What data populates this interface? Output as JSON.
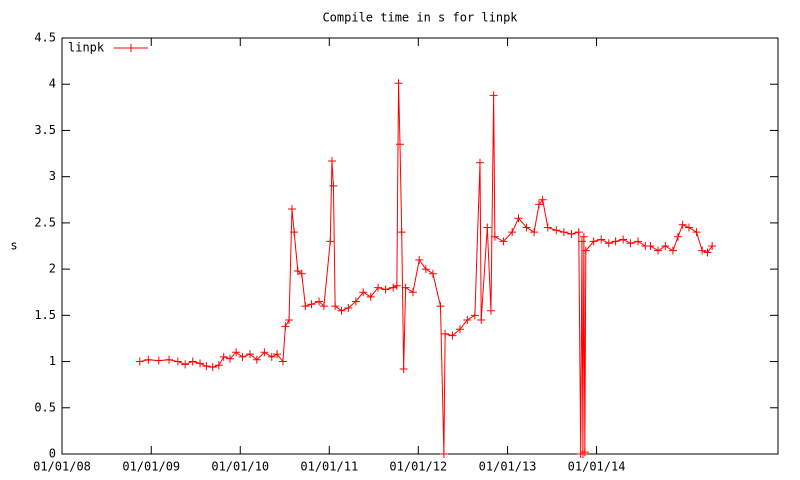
{
  "chart_data": {
    "type": "line",
    "title": "Compile time in s for linpk",
    "y_label": "s",
    "legend_position": "top-left",
    "grid": false,
    "ylim": [
      0,
      4.5
    ],
    "yticks": [
      0,
      0.5,
      1,
      1.5,
      2,
      2.5,
      3,
      3.5,
      4,
      4.5
    ],
    "xlim": [
      "2008-01-01",
      "2016-01-15"
    ],
    "xticks": [
      {
        "value": "2008-01-01",
        "label": "01/01/08"
      },
      {
        "value": "2009-01-01",
        "label": "01/01/09"
      },
      {
        "value": "2010-01-01",
        "label": "01/01/10"
      },
      {
        "value": "2011-01-01",
        "label": "01/01/11"
      },
      {
        "value": "2012-01-01",
        "label": "01/01/12"
      },
      {
        "value": "2013-01-01",
        "label": "01/01/13"
      },
      {
        "value": "2014-01-01",
        "label": "01/01/14"
      }
    ],
    "x": [
      "2008-11-15",
      "2008-12-20",
      "2009-02-01",
      "2009-03-15",
      "2009-04-20",
      "2009-05-20",
      "2009-06-20",
      "2009-07-20",
      "2009-08-15",
      "2009-09-10",
      "2009-10-05",
      "2009-10-25",
      "2009-11-20",
      "2009-12-15",
      "2010-01-10",
      "2010-02-10",
      "2010-03-10",
      "2010-04-10",
      "2010-05-10",
      "2010-06-01",
      "2010-06-25",
      "2010-07-05",
      "2010-07-20",
      "2010-08-01",
      "2010-08-10",
      "2010-08-25",
      "2010-09-10",
      "2010-09-25",
      "2010-10-20",
      "2010-11-20",
      "2010-12-10",
      "2011-01-05",
      "2011-01-12",
      "2011-01-18",
      "2011-01-25",
      "2011-02-20",
      "2011-03-20",
      "2011-04-20",
      "2011-05-20",
      "2011-06-20",
      "2011-07-20",
      "2011-08-20",
      "2011-09-20",
      "2011-10-05",
      "2011-10-12",
      "2011-10-18",
      "2011-10-25",
      "2011-11-02",
      "2011-11-10",
      "2011-12-10",
      "2012-01-05",
      "2012-02-01",
      "2012-03-01",
      "2012-04-01",
      "2012-04-15",
      "2012-04-20",
      "2012-05-20",
      "2012-06-20",
      "2012-07-20",
      "2012-08-20",
      "2012-09-10",
      "2012-09-15",
      "2012-10-10",
      "2012-10-25",
      "2012-11-05",
      "2012-11-10",
      "2012-12-15",
      "2013-01-20",
      "2013-02-15",
      "2013-03-20",
      "2013-04-20",
      "2013-05-10",
      "2013-05-25",
      "2013-06-15",
      "2013-07-20",
      "2013-08-20",
      "2013-09-20",
      "2013-10-20",
      "2013-10-28",
      "2013-11-02",
      "2013-11-06",
      "2013-11-10",
      "2013-11-14",
      "2013-11-18",
      "2013-12-20",
      "2014-01-20",
      "2014-02-20",
      "2014-03-20",
      "2014-04-20",
      "2014-05-20",
      "2014-06-20",
      "2014-07-20",
      "2014-08-10",
      "2014-09-10",
      "2014-10-10",
      "2014-11-10",
      "2014-12-01",
      "2014-12-20",
      "2015-01-15",
      "2015-02-15",
      "2015-03-10",
      "2015-04-01",
      "2015-04-20"
    ],
    "series": [
      {
        "name": "linpk",
        "color": "#ff0000",
        "values": [
          1.0,
          1.02,
          1.01,
          1.02,
          1.0,
          0.97,
          1.0,
          0.98,
          0.95,
          0.94,
          0.96,
          1.05,
          1.03,
          1.1,
          1.05,
          1.08,
          1.02,
          1.1,
          1.05,
          1.08,
          1.0,
          1.38,
          1.45,
          2.65,
          2.4,
          1.98,
          1.95,
          1.6,
          1.62,
          1.65,
          1.6,
          2.3,
          3.17,
          2.9,
          1.6,
          1.55,
          1.58,
          1.65,
          1.75,
          1.7,
          1.8,
          1.78,
          1.8,
          1.82,
          4.01,
          3.35,
          2.4,
          0.92,
          1.8,
          1.75,
          2.1,
          2.0,
          1.95,
          1.6,
          0.0,
          1.3,
          1.28,
          1.35,
          1.45,
          1.5,
          3.15,
          1.45,
          2.45,
          1.55,
          3.88,
          2.35,
          2.3,
          2.4,
          2.55,
          2.45,
          2.4,
          2.7,
          2.75,
          2.45,
          2.42,
          2.4,
          2.38,
          2.4,
          0.0,
          2.3,
          0.0,
          2.35,
          0.02,
          2.2,
          2.3,
          2.32,
          2.28,
          2.3,
          2.32,
          2.28,
          2.3,
          2.25,
          2.25,
          2.2,
          2.25,
          2.2,
          2.35,
          2.48,
          2.45,
          2.4,
          2.2,
          2.18,
          2.25
        ]
      }
    ]
  }
}
